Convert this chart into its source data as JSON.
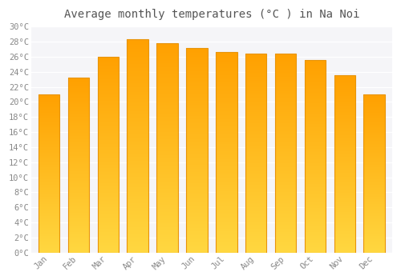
{
  "title": "Average monthly temperatures (°C ) in Na Noi",
  "months": [
    "Jan",
    "Feb",
    "Mar",
    "Apr",
    "May",
    "Jun",
    "Jul",
    "Aug",
    "Sep",
    "Oct",
    "Nov",
    "Dec"
  ],
  "temperatures": [
    21.0,
    23.2,
    26.0,
    28.3,
    27.8,
    27.2,
    26.6,
    26.4,
    26.4,
    25.6,
    23.5,
    21.0
  ],
  "bar_color_bottom": "#FFD740",
  "bar_color_top": "#FFA000",
  "bar_edge_color": "#E8940A",
  "ylim": [
    0,
    30
  ],
  "ytick_step": 2,
  "background_color": "#ffffff",
  "plot_bg_color": "#f5f5f8",
  "grid_color": "#ffffff",
  "title_fontsize": 10,
  "tick_fontsize": 7.5,
  "font_family": "monospace",
  "title_color": "#555555",
  "tick_color": "#888888",
  "bar_width": 0.72
}
